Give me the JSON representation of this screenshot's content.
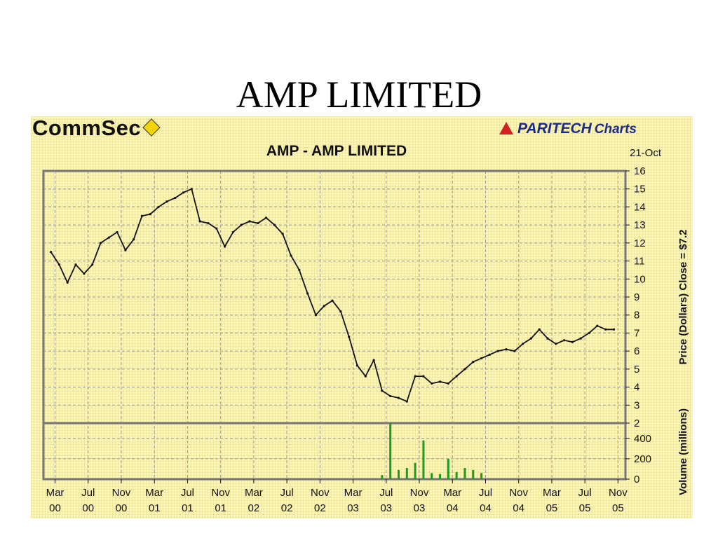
{
  "slide": {
    "title": "AMP LIMITED"
  },
  "logos": {
    "left": "CommSec",
    "left_icon": "diamond-icon",
    "right": "PARITECH",
    "right_suffix": "Charts",
    "right_icon": "paritech-icon"
  },
  "colors": {
    "background": "#fbf6c2",
    "price_line": "#111111",
    "volume_bar": "#1f9a1f",
    "grid": "#9a9a9a"
  },
  "chart_data": {
    "type": "line",
    "title": "AMP  -  AMP LIMITED",
    "date_label": "21-Oct",
    "x_tick_labels": [
      [
        "Mar",
        "00"
      ],
      [
        "Jul",
        "00"
      ],
      [
        "Nov",
        "00"
      ],
      [
        "Mar",
        "01"
      ],
      [
        "Jul",
        "01"
      ],
      [
        "Nov",
        "01"
      ],
      [
        "Mar",
        "02"
      ],
      [
        "Jul",
        "02"
      ],
      [
        "Nov",
        "02"
      ],
      [
        "Mar",
        "03"
      ],
      [
        "Jul",
        "03"
      ],
      [
        "Nov",
        "03"
      ],
      [
        "Mar",
        "04"
      ],
      [
        "Jul",
        "04"
      ],
      [
        "Nov",
        "04"
      ],
      [
        "Mar",
        "05"
      ],
      [
        "Jul",
        "05"
      ],
      [
        "Nov",
        "05"
      ]
    ],
    "price": {
      "ylabel": "Price (Dollars)  Close = $7.2",
      "ylim": [
        2,
        16
      ],
      "yticks": [
        2,
        3,
        4,
        5,
        6,
        7,
        8,
        9,
        10,
        11,
        12,
        13,
        14,
        15,
        16
      ],
      "x": [
        "Feb 00",
        "Mar 00",
        "Apr 00",
        "May 00",
        "Jun 00",
        "Jul 00",
        "Aug 00",
        "Sep 00",
        "Oct 00",
        "Nov 00",
        "Dec 00",
        "Jan 01",
        "Feb 01",
        "Mar 01",
        "Apr 01",
        "May 01",
        "Jun 01",
        "Jul 01",
        "Aug 01",
        "Sep 01",
        "Oct 01",
        "Nov 01",
        "Dec 01",
        "Jan 02",
        "Feb 02",
        "Mar 02",
        "Apr 02",
        "May 02",
        "Jun 02",
        "Jul 02",
        "Aug 02",
        "Sep 02",
        "Oct 02",
        "Nov 02",
        "Dec 02",
        "Jan 03",
        "Feb 03",
        "Mar 03",
        "Apr 03",
        "May 03",
        "Jun 03",
        "Jul 03",
        "Aug 03",
        "Sep 03",
        "Oct 03",
        "Nov 03",
        "Dec 03",
        "Jan 04",
        "Feb 04",
        "Mar 04",
        "Apr 04",
        "May 04",
        "Jun 04",
        "Jul 04",
        "Aug 04",
        "Sep 04",
        "Oct 04",
        "Nov 04",
        "Dec 04",
        "Jan 05",
        "Feb 05",
        "Mar 05",
        "Apr 05",
        "May 05",
        "Jun 05",
        "Jul 05",
        "Aug 05",
        "Sep 05",
        "Oct 05"
      ],
      "close": [
        11.5,
        10.8,
        9.8,
        10.8,
        10.3,
        10.8,
        12.0,
        12.3,
        12.6,
        11.6,
        12.2,
        13.5,
        13.6,
        14.0,
        14.3,
        14.5,
        14.8,
        15.0,
        13.2,
        13.1,
        12.8,
        11.8,
        12.6,
        13.0,
        13.2,
        13.1,
        13.4,
        13.0,
        12.5,
        11.3,
        10.5,
        9.2,
        8.0,
        8.5,
        8.8,
        8.2,
        6.8,
        5.2,
        4.6,
        5.5,
        3.8,
        3.5,
        3.4,
        3.2,
        4.6,
        4.6,
        4.2,
        4.3,
        4.2,
        4.6,
        5.0,
        5.4,
        5.6,
        5.8,
        6.0,
        6.1,
        6.0,
        6.4,
        6.7,
        7.2,
        6.7,
        6.4,
        6.6,
        6.5,
        6.7,
        7.0,
        7.4,
        7.2,
        7.2
      ]
    },
    "volume": {
      "ylabel": "Volume (millions)",
      "ylim": [
        0,
        550
      ],
      "yticks": [
        0,
        200,
        400
      ],
      "x": [
        "Jun 03",
        "Jul 03",
        "Aug 03",
        "Sep 03",
        "Oct 03",
        "Nov 03",
        "Dec 03",
        "Jan 04",
        "Feb 04",
        "Mar 04",
        "Apr 04",
        "May 04",
        "Jun 04"
      ],
      "values": [
        40,
        550,
        90,
        110,
        160,
        380,
        60,
        50,
        200,
        70,
        110,
        90,
        60
      ]
    }
  }
}
